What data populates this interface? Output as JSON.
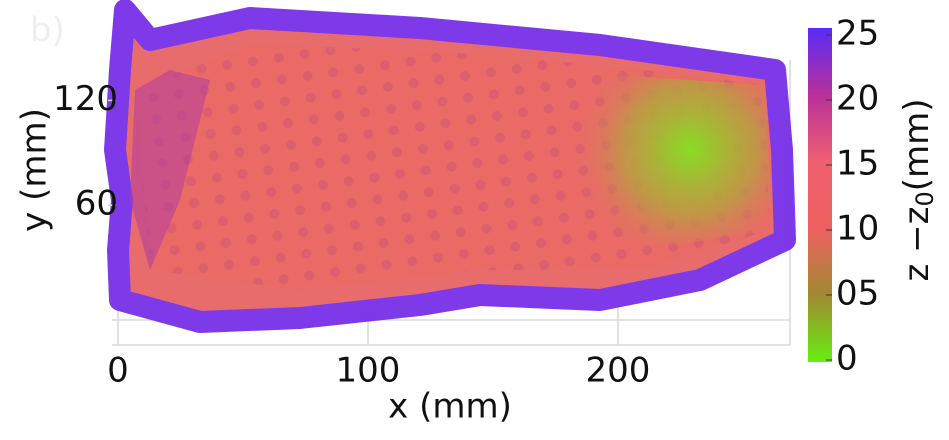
{
  "chart_data": {
    "type": "surface",
    "panel_label": "b)",
    "x_label": "x (mm)",
    "y_label": "y (mm)",
    "xlim": [
      0,
      270
    ],
    "xticks": [
      0,
      100,
      200
    ],
    "ylim": [
      0,
      150
    ],
    "yticks": [
      60,
      120
    ],
    "colorbar": {
      "lim": [
        0,
        25
      ],
      "ticks": [
        0,
        {
          "value": 5,
          "label": "05"
        },
        10,
        15,
        20,
        25
      ],
      "label": {
        "text": "z −z",
        "subscript": "0",
        "suffix": "(mm)"
      },
      "colors": [
        "#66ee11",
        "#a08a30",
        "#ee6060",
        "#f06070",
        "#b8309a",
        "#5a2cf8"
      ]
    }
  }
}
